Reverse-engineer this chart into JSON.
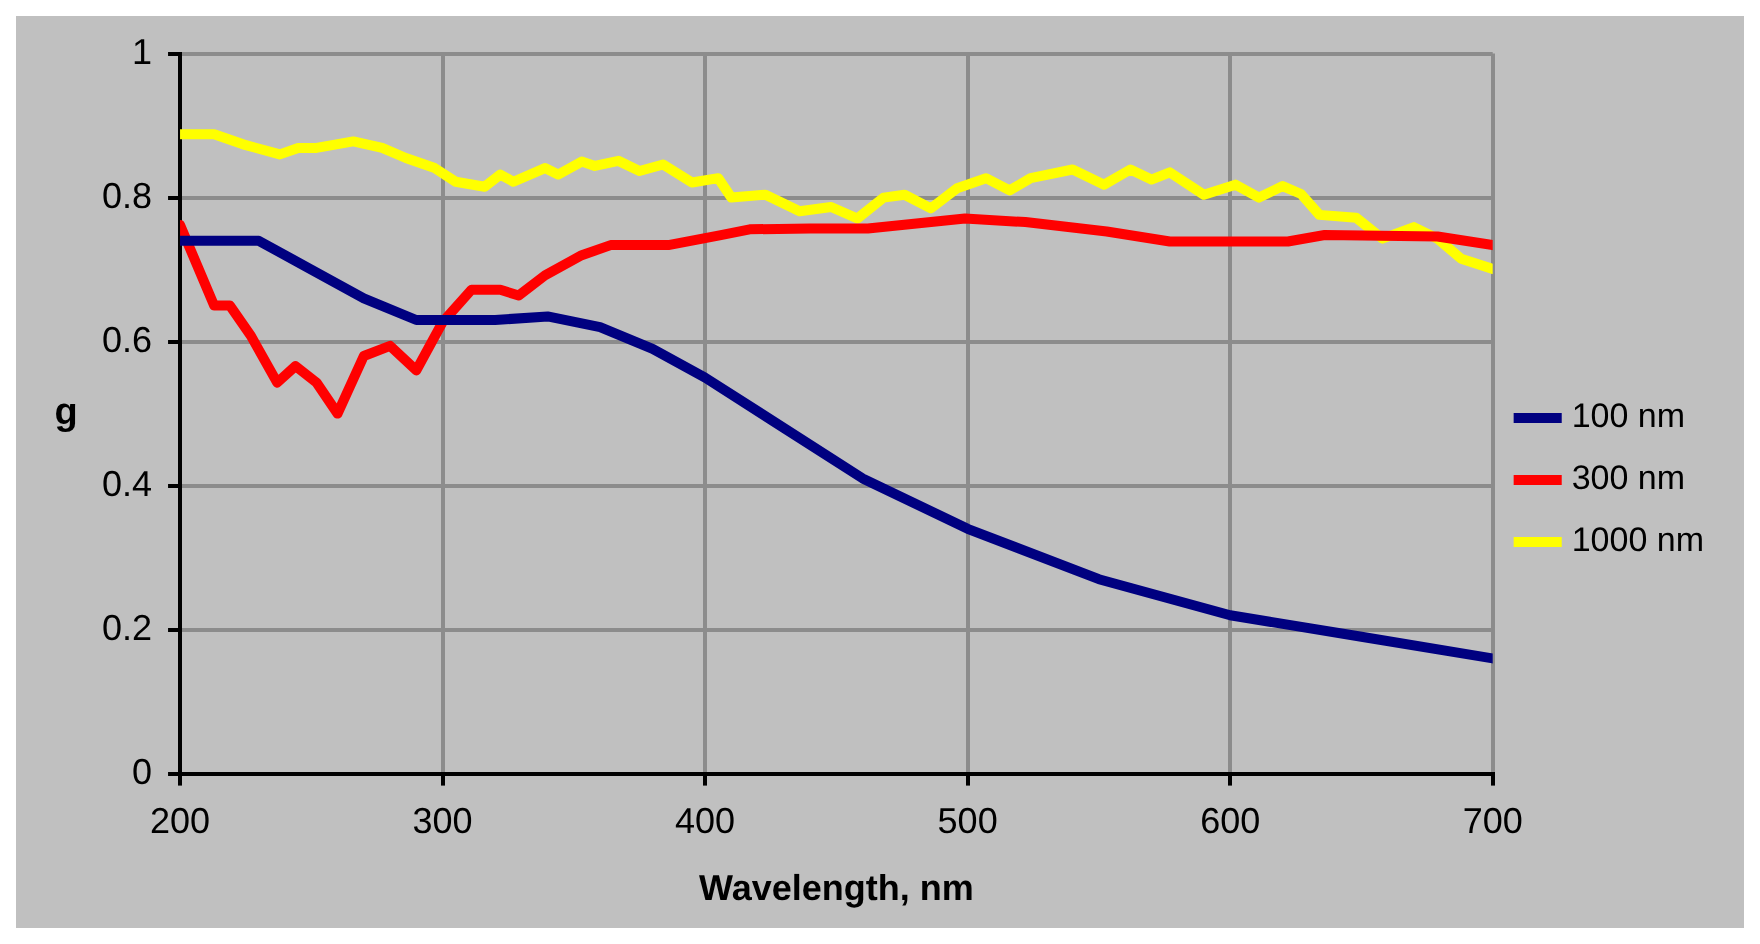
{
  "chart_data": {
    "type": "line",
    "xlabel": "Wavelength, nm",
    "ylabel": "g",
    "xlim": [
      200,
      700
    ],
    "xticks": [
      200,
      300,
      400,
      500,
      600,
      700
    ],
    "ylim": [
      0,
      1
    ],
    "yticks": [
      0,
      0.2,
      0.4,
      0.6,
      0.8,
      1
    ],
    "grid": true,
    "legend": "right",
    "marker": "none",
    "line_style": "solid",
    "series": [
      {
        "name": "100 nm",
        "color": "#000080",
        "x": [
          200,
          230,
          250,
          270,
          290,
          320,
          340,
          360,
          380,
          400,
          430,
          460,
          500,
          550,
          600,
          650,
          700
        ],
        "values": [
          0.74,
          0.74,
          0.7,
          0.66,
          0.63,
          0.63,
          0.635,
          0.62,
          0.59,
          0.55,
          0.48,
          0.41,
          0.34,
          0.27,
          0.22,
          0.19,
          0.16
        ]
      },
      {
        "name": "300 nm",
        "color": "#ff0000",
        "x": [
          200,
          213,
          219,
          227,
          237,
          244,
          252,
          260,
          270,
          280,
          290,
          300,
          311,
          322,
          329,
          339,
          353,
          364,
          386,
          406,
          417,
          440,
          462,
          499,
          522,
          553,
          577,
          622,
          636,
          679,
          700
        ],
        "values": [
          0.762,
          0.65,
          0.65,
          0.608,
          0.543,
          0.566,
          0.543,
          0.5,
          0.58,
          0.594,
          0.56,
          0.627,
          0.672,
          0.672,
          0.664,
          0.692,
          0.72,
          0.734,
          0.734,
          0.748,
          0.756,
          0.757,
          0.757,
          0.771,
          0.766,
          0.753,
          0.739,
          0.739,
          0.748,
          0.746,
          0.734
        ]
      },
      {
        "name": "1000 nm",
        "color": "#ffff00",
        "x": [
          200,
          213,
          224,
          238,
          245,
          252,
          266,
          277,
          286,
          297,
          305,
          316,
          322,
          327,
          339,
          344,
          353,
          358,
          367,
          375,
          384,
          395,
          405,
          410,
          423,
          436,
          448,
          458,
          468,
          476,
          486,
          496,
          507,
          516,
          524,
          540,
          552,
          562,
          570,
          577,
          590,
          602,
          611,
          620,
          627,
          634,
          648,
          658,
          670,
          679,
          688,
          700
        ],
        "values": [
          0.888,
          0.888,
          0.874,
          0.86,
          0.869,
          0.869,
          0.878,
          0.869,
          0.855,
          0.841,
          0.822,
          0.815,
          0.832,
          0.822,
          0.841,
          0.832,
          0.85,
          0.844,
          0.851,
          0.837,
          0.846,
          0.821,
          0.827,
          0.8,
          0.804,
          0.781,
          0.787,
          0.771,
          0.8,
          0.804,
          0.785,
          0.813,
          0.827,
          0.81,
          0.827,
          0.839,
          0.818,
          0.839,
          0.825,
          0.835,
          0.804,
          0.818,
          0.8,
          0.816,
          0.805,
          0.776,
          0.772,
          0.743,
          0.759,
          0.743,
          0.715,
          0.701
        ]
      }
    ]
  }
}
